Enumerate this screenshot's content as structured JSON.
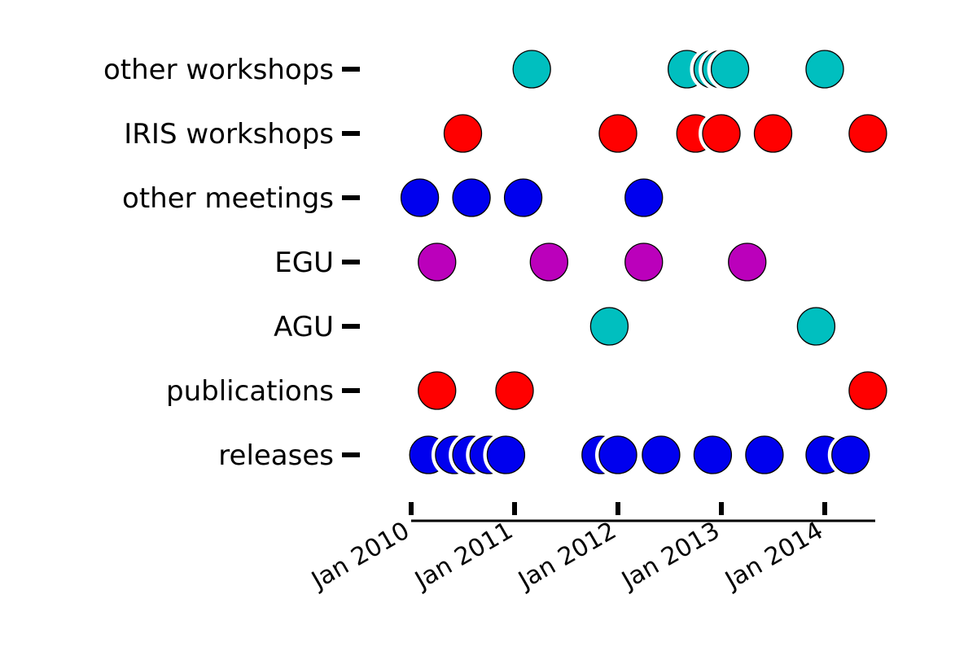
{
  "chart_data": {
    "type": "scatter",
    "title": "",
    "xlabel": "",
    "ylabel": "",
    "x_ticks": [
      "Jan 2010",
      "Jan 2011",
      "Jan 2012",
      "Jan 2013",
      "Jan 2014"
    ],
    "xlim": [
      "2010-01",
      "2014-07"
    ],
    "grid": false,
    "series": [
      {
        "name": "releases",
        "color": "#0000ee",
        "dates": [
          "2010-03",
          "2010-06",
          "2010-08",
          "2010-10",
          "2010-12",
          "2011-11",
          "2012-01",
          "2012-06",
          "2012-12",
          "2013-06",
          "2014-01",
          "2014-04"
        ]
      },
      {
        "name": "publications",
        "color": "#ff0000",
        "dates": [
          "2010-04",
          "2011-01",
          "2014-06"
        ]
      },
      {
        "name": "AGU",
        "color": "#00bfbf",
        "dates": [
          "2011-12",
          "2013-12"
        ]
      },
      {
        "name": "EGU",
        "color": "#bb00bb",
        "dates": [
          "2010-04",
          "2011-05",
          "2012-04",
          "2013-04"
        ]
      },
      {
        "name": "other meetings",
        "color": "#0000ee",
        "dates": [
          "2010-02",
          "2010-08",
          "2011-02",
          "2012-04"
        ]
      },
      {
        "name": "IRIS workshops",
        "color": "#ff0000",
        "dates": [
          "2010-07",
          "2012-01",
          "2012-10",
          "2013-01",
          "2013-07",
          "2014-06"
        ]
      },
      {
        "name": "other workshops",
        "color": "#00bfbf",
        "dates": [
          "2011-03",
          "2012-09",
          "2012-12",
          "2013-01",
          "2013-02",
          "2014-01"
        ]
      }
    ]
  }
}
